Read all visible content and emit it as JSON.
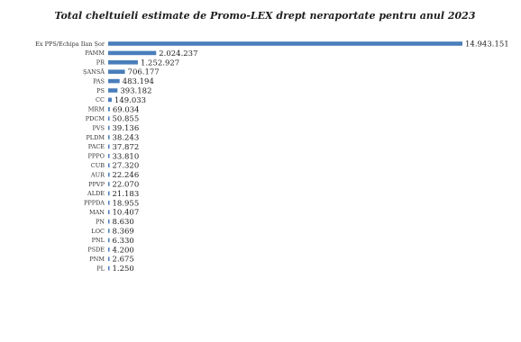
{
  "chart_data": {
    "type": "bar",
    "orientation": "horizontal",
    "title": "Total cheltuieli estimate de Promo-LEX drept neraportate pentru anul 2023",
    "xlabel": "",
    "ylabel": "",
    "grid": false,
    "legend": "none",
    "bar_color": "#4a7ebb",
    "categories": [
      "Ex PPS/Echipa Ilan Șor",
      "PAMM",
      "PR",
      "ȘANSĂ",
      "PAS",
      "PS",
      "CC",
      "MRM",
      "PDCM",
      "PVS",
      "PLDM",
      "PACE",
      "PPPO",
      "CUB",
      "AUR",
      "PPVP",
      "ALDE",
      "PPPDA",
      "MAN",
      "PN",
      "LOC",
      "PNL",
      "PSDE",
      "PNM",
      "PL"
    ],
    "values": [
      14943151,
      2024237,
      1252927,
      706177,
      483194,
      393182,
      149033,
      69034,
      50855,
      39136,
      38243,
      37872,
      33810,
      27320,
      22246,
      22070,
      21183,
      18955,
      10407,
      8630,
      8369,
      6330,
      4200,
      2675,
      1250
    ],
    "value_labels": [
      "14.943.151",
      "2.024.237",
      "1.252.927",
      "706.177",
      "483.194",
      "393.182",
      "149.033",
      "69.034",
      "50.855",
      "39.136",
      "38.243",
      "37.872",
      "33.810",
      "27.320",
      "22.246",
      "22.070",
      "21.183",
      "18.955",
      "10.407",
      "8.630",
      "8.369",
      "6.330",
      "4.200",
      "2.675",
      "1.250"
    ],
    "xlim": [
      0,
      14943151
    ]
  }
}
